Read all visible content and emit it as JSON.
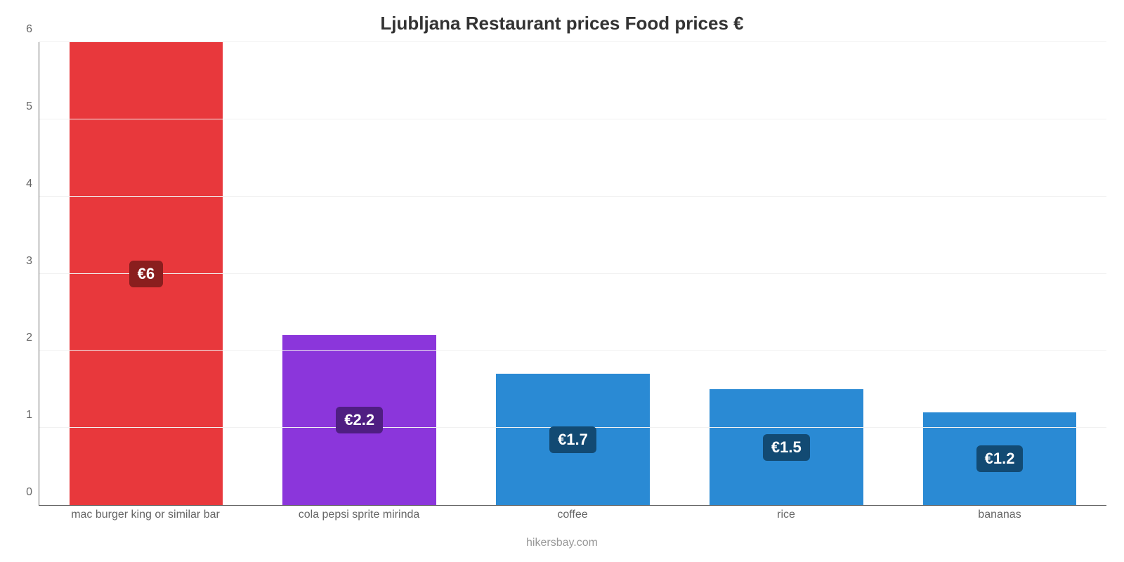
{
  "chart": {
    "type": "bar",
    "title": "Ljubljana Restaurant prices Food prices €",
    "title_fontsize": 26,
    "title_color": "#333333",
    "background_color": "#ffffff",
    "grid_color": "#f1f1f1",
    "axis_color": "#666666",
    "axis_label_color": "#666666",
    "axis_label_fontsize": 16,
    "ylim": [
      0,
      6
    ],
    "ytick_step": 1,
    "yticks": [
      0,
      1,
      2,
      3,
      4,
      5,
      6
    ],
    "bar_width_pct": 72,
    "categories": [
      "mac burger king or similar bar",
      "cola pepsi sprite mirinda",
      "coffee",
      "rice",
      "bananas"
    ],
    "values": [
      6,
      2.2,
      1.7,
      1.5,
      1.2
    ],
    "value_labels": [
      "€6",
      "€2.2",
      "€1.7",
      "€1.5",
      "€1.2"
    ],
    "bar_colors": [
      "#e8383c",
      "#8b36db",
      "#2a8ad4",
      "#2a8ad4",
      "#2a8ad4"
    ],
    "badge_bg_colors": [
      "#8a1e1e",
      "#4f1e82",
      "#124a73",
      "#124a73",
      "#124a73"
    ],
    "badge_text_color": "#ffffff",
    "badge_fontsize": 22,
    "credit": "hikersbay.com",
    "credit_color": "#999999",
    "credit_fontsize": 16
  }
}
